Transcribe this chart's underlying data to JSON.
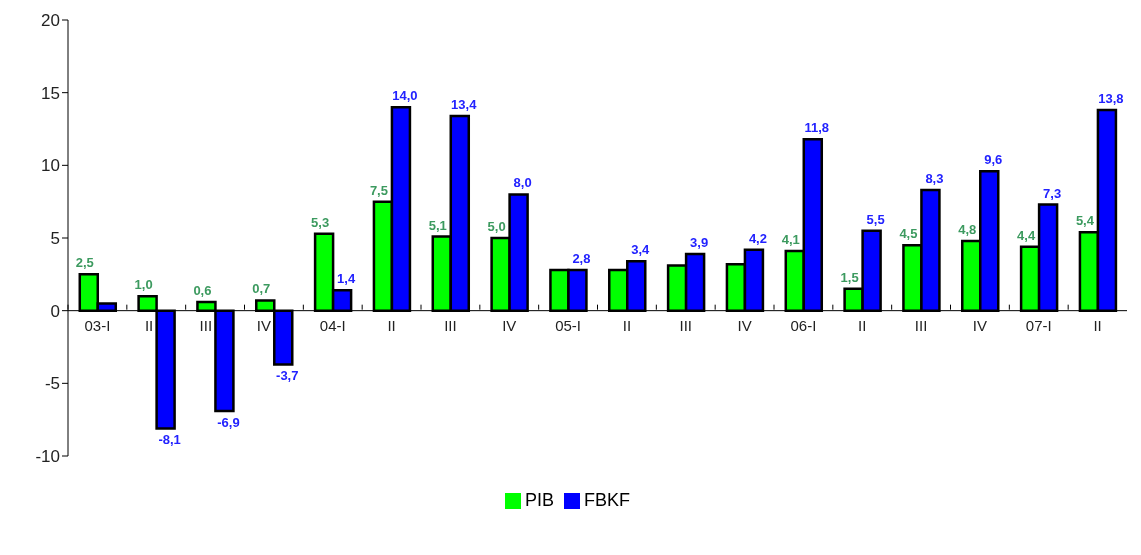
{
  "chart_data": {
    "type": "bar",
    "categories": [
      "03-I",
      "II",
      "III",
      "IV",
      "04-I",
      "II",
      "III",
      "IV",
      "05-I",
      "II",
      "III",
      "IV",
      "06-I",
      "II",
      "III",
      "IV",
      "07-I",
      "II"
    ],
    "series": [
      {
        "name": "PIB",
        "color": "#00ff00",
        "values": [
          2.5,
          1.0,
          0.6,
          0.7,
          5.3,
          7.5,
          5.1,
          5.0,
          2.8,
          2.8,
          3.1,
          3.2,
          4.1,
          1.5,
          4.5,
          4.8,
          4.4,
          5.4
        ],
        "value_labels": [
          "2,5",
          "1,0",
          "0,6",
          "0,7",
          "5,3",
          "7,5",
          "5,1",
          "5,0",
          null,
          null,
          null,
          null,
          "4,1",
          "1,5",
          "4,5",
          "4,8",
          "4,4",
          "5,4"
        ]
      },
      {
        "name": "FBKF",
        "color": "#0000ff",
        "values": [
          0.5,
          -8.1,
          -6.9,
          -3.7,
          1.4,
          14.0,
          13.4,
          8.0,
          2.8,
          3.4,
          3.9,
          4.2,
          11.8,
          5.5,
          8.3,
          9.6,
          7.3,
          13.8
        ],
        "value_labels": [
          null,
          "-8,1",
          "-6,9",
          "-3,7",
          "1,4",
          "14,0",
          "13,4",
          "8,0",
          "2,8",
          "3,4",
          "3,9",
          "4,2",
          "11,8",
          "5,5",
          "8,3",
          "9,6",
          "7,3",
          "13,8"
        ]
      }
    ],
    "ylim": [
      -10,
      20
    ],
    "yticks": [
      -10,
      -5,
      0,
      5,
      10,
      15,
      20
    ],
    "grid": false,
    "legend": "bottom"
  }
}
